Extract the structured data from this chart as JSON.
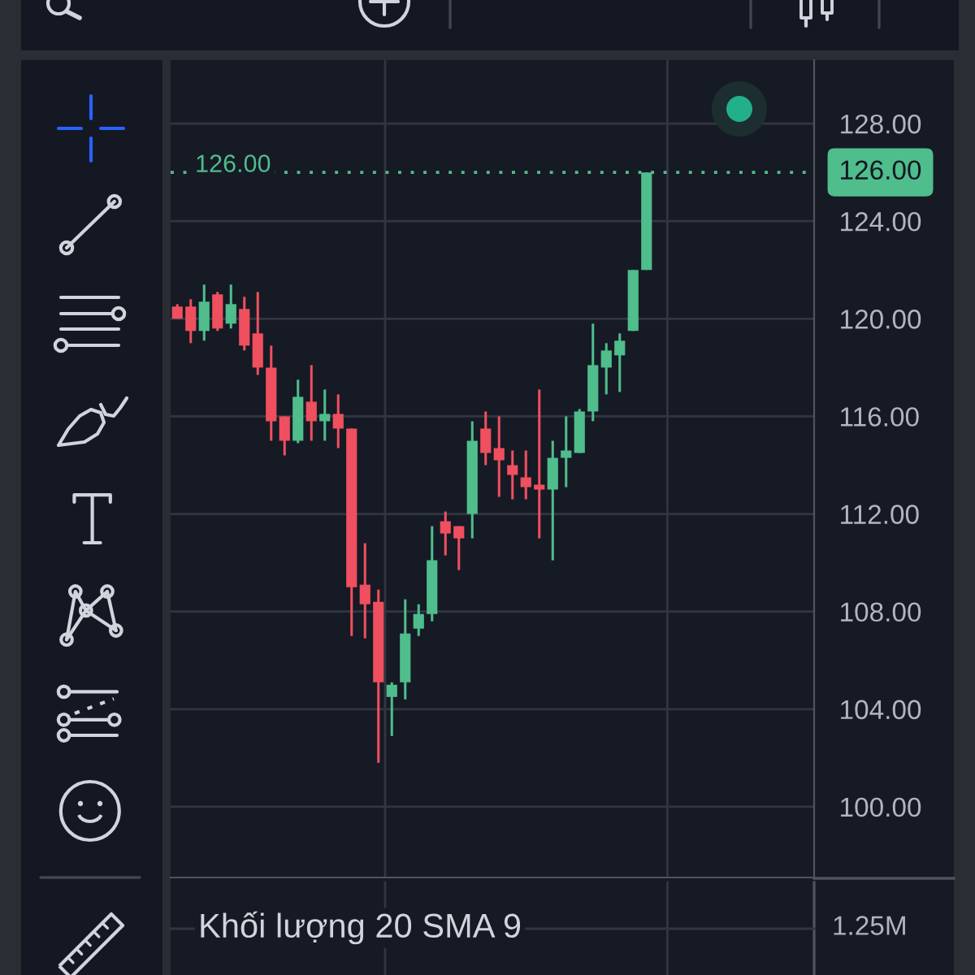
{
  "chart_data": {
    "type": "candlestick",
    "categories": [
      null,
      null,
      null,
      null,
      null,
      null,
      null,
      null,
      null,
      null,
      null,
      null,
      null,
      null,
      null,
      null,
      null,
      null,
      null,
      null,
      null,
      null,
      null,
      null,
      null,
      null,
      null,
      null,
      null,
      null,
      null,
      null,
      null,
      null,
      null,
      null,
      null,
      null,
      null,
      null,
      null,
      null,
      null,
      null,
      null,
      null,
      null,
      null
    ],
    "ohlc": [
      [
        120.5,
        120.6,
        120.0,
        120.0
      ],
      [
        120.5,
        120.8,
        119.0,
        119.5
      ],
      [
        119.5,
        121.4,
        119.1,
        120.7
      ],
      [
        121.0,
        121.1,
        119.5,
        119.6
      ],
      [
        119.8,
        121.4,
        119.6,
        120.6
      ],
      [
        120.4,
        120.9,
        118.7,
        118.9
      ],
      [
        119.4,
        121.1,
        117.7,
        118.0
      ],
      [
        118.0,
        118.9,
        115.0,
        115.8
      ],
      [
        116.0,
        116.0,
        114.4,
        115.0
      ],
      [
        115.0,
        117.5,
        114.9,
        116.8
      ],
      [
        116.6,
        118.1,
        115.0,
        115.8
      ],
      [
        115.8,
        117.1,
        115.0,
        116.1
      ],
      [
        116.1,
        116.9,
        114.7,
        115.5
      ],
      [
        115.5,
        115.5,
        107.0,
        109.0
      ],
      [
        109.1,
        110.8,
        106.9,
        108.3
      ],
      [
        108.4,
        108.9,
        101.8,
        105.1
      ],
      [
        104.5,
        105.1,
        102.9,
        105.0
      ],
      [
        105.1,
        108.5,
        104.4,
        107.1
      ],
      [
        107.3,
        108.3,
        107.0,
        107.9
      ],
      [
        107.9,
        111.5,
        107.6,
        110.1
      ],
      [
        111.7,
        112.1,
        110.3,
        111.2
      ],
      [
        111.5,
        111.5,
        109.7,
        111.0
      ],
      [
        112.0,
        115.8,
        111.0,
        115.0
      ],
      [
        115.5,
        116.2,
        114.0,
        114.5
      ],
      [
        114.7,
        116.0,
        112.7,
        114.2
      ],
      [
        114.0,
        114.6,
        112.6,
        113.6
      ],
      [
        113.5,
        114.6,
        112.6,
        113.1
      ],
      [
        113.2,
        117.1,
        111.0,
        113.0
      ],
      [
        113.0,
        115.0,
        110.1,
        114.3
      ],
      [
        114.3,
        116.0,
        113.1,
        114.6
      ],
      [
        114.5,
        116.3,
        114.5,
        116.2
      ],
      [
        116.2,
        119.8,
        115.8,
        118.1
      ],
      [
        118.0,
        119.0,
        116.9,
        118.7
      ],
      [
        118.5,
        119.4,
        117.0,
        119.1
      ],
      [
        119.5,
        122.0,
        119.5,
        122.0
      ],
      [
        122.0,
        126.0,
        122.0,
        126.0
      ],
      null,
      null,
      null,
      null,
      null,
      null,
      null,
      null,
      null,
      null,
      null,
      null
    ],
    "colors": [
      "#ef4f5e",
      "#ef4f5e",
      "#4fbd8c",
      "#ef4f5e",
      "#4fbd8c",
      "#ef4f5e",
      "#ef4f5e",
      "#ef4f5e",
      "#ef4f5e",
      "#4fbd8c",
      "#ef4f5e",
      "#4fbd8c",
      "#ef4f5e",
      "#ef4f5e",
      "#ef4f5e",
      "#ef4f5e",
      "#4fbd8c",
      "#4fbd8c",
      "#4fbd8c",
      "#4fbd8c",
      "#ef4f5e",
      "#ef4f5e",
      "#4fbd8c",
      "#ef4f5e",
      "#ef4f5e",
      "#ef4f5e",
      "#ef4f5e",
      "#ef4f5e",
      "#4fbd8c",
      "#4fbd8c",
      "#4fbd8c",
      "#4fbd8c",
      "#4fbd8c",
      "#4fbd8c",
      "#4fbd8c",
      "#4fbd8c",
      null,
      null,
      null,
      null,
      null,
      null,
      null,
      null,
      null,
      null,
      null,
      null
    ],
    "ylim": [
      97.1,
      130.6
    ],
    "yticks": [
      {
        "value": 100,
        "label": "100.00"
      },
      {
        "value": 104,
        "label": "104.00"
      },
      {
        "value": 108,
        "label": "108.00"
      },
      {
        "value": 112,
        "label": "112.00"
      },
      {
        "value": 116,
        "label": "116.00"
      },
      {
        "value": 120,
        "label": "120.00"
      },
      {
        "value": 124,
        "label": "124.00"
      },
      {
        "value": 128,
        "label": "128.00"
      }
    ],
    "grid": true,
    "tick_labels": "y",
    "ref_lines": [
      {
        "axis": "y",
        "value": 126,
        "label": "126.00",
        "color": "#4fbd8c",
        "line_style": "dotted"
      }
    ],
    "annotations": [
      "Khối lượng 20 SMA 9",
      "1.25M"
    ]
  }
}
